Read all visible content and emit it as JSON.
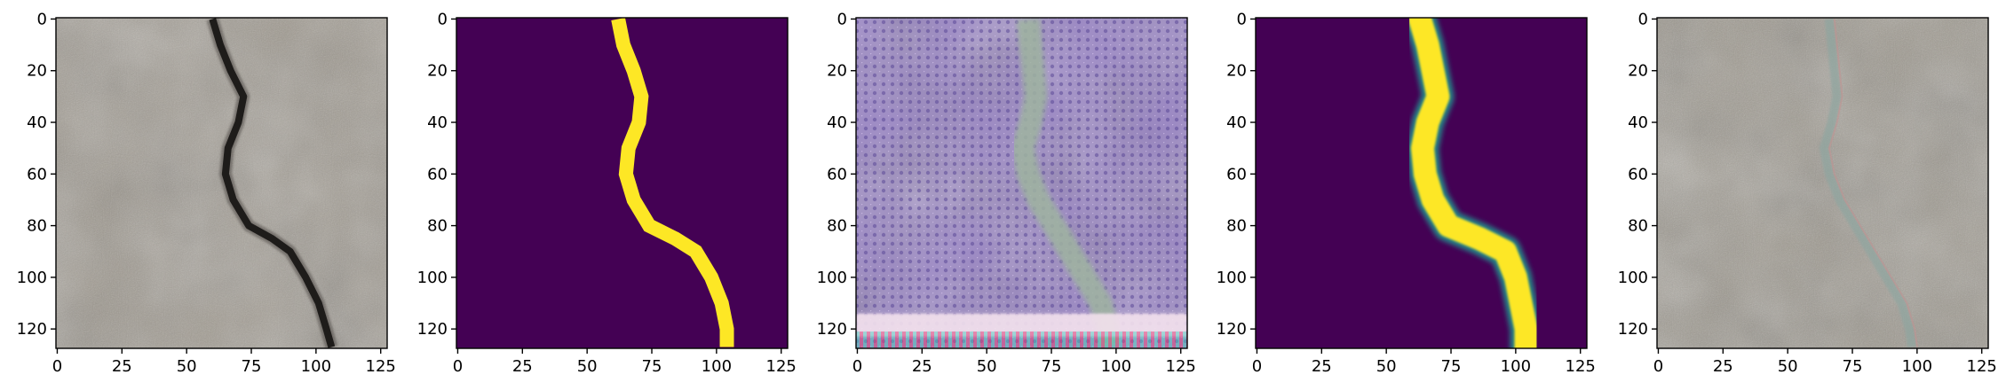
{
  "chart_data": [
    {
      "type": "image",
      "panel": "original-photo",
      "xlim": [
        0,
        127
      ],
      "ylim": [
        127,
        0
      ],
      "x_ticks": [
        0,
        25,
        50,
        75,
        100,
        125
      ],
      "y_ticks": [
        0,
        20,
        40,
        60,
        80,
        100,
        120
      ],
      "crack_path": [
        [
          60,
          0
        ],
        [
          63,
          10
        ],
        [
          67,
          20
        ],
        [
          72,
          30
        ],
        [
          70,
          40
        ],
        [
          66,
          50
        ],
        [
          65,
          60
        ],
        [
          68,
          70
        ],
        [
          74,
          80
        ],
        [
          83,
          85
        ],
        [
          90,
          90
        ],
        [
          96,
          100
        ],
        [
          101,
          110
        ],
        [
          104,
          120
        ],
        [
          106,
          127
        ]
      ],
      "colors": {
        "surface": "#a09a90",
        "surface_dark": "#8a857d",
        "crack": "#1e1c1a"
      }
    },
    {
      "type": "image",
      "panel": "ground-truth-mask",
      "xlim": [
        0,
        127
      ],
      "ylim": [
        127,
        0
      ],
      "x_ticks": [
        0,
        25,
        50,
        75,
        100,
        125
      ],
      "y_ticks": [
        0,
        20,
        40,
        60,
        80,
        100,
        120
      ],
      "crack_path": [
        [
          62,
          0
        ],
        [
          64,
          10
        ],
        [
          68,
          20
        ],
        [
          71,
          30
        ],
        [
          70,
          40
        ],
        [
          66,
          50
        ],
        [
          65,
          60
        ],
        [
          68,
          70
        ],
        [
          74,
          80
        ],
        [
          84,
          85
        ],
        [
          92,
          90
        ],
        [
          98,
          100
        ],
        [
          102,
          110
        ],
        [
          104,
          120
        ],
        [
          104,
          127
        ]
      ],
      "colors": {
        "background": "#440154",
        "crack": "#fde725"
      }
    },
    {
      "type": "image",
      "panel": "generated-image",
      "xlim": [
        0,
        127
      ],
      "ylim": [
        127,
        0
      ],
      "x_ticks": [
        0,
        25,
        50,
        75,
        100,
        125
      ],
      "y_ticks": [
        0,
        20,
        40,
        60,
        80,
        100,
        120
      ],
      "crack_path": [
        [
          66,
          0
        ],
        [
          67,
          10
        ],
        [
          68,
          20
        ],
        [
          69,
          30
        ],
        [
          67,
          40
        ],
        [
          64,
          50
        ],
        [
          66,
          60
        ],
        [
          70,
          70
        ],
        [
          76,
          80
        ],
        [
          82,
          90
        ],
        [
          88,
          100
        ],
        [
          94,
          110
        ],
        [
          97,
          120
        ],
        [
          98,
          127
        ]
      ],
      "colors": {
        "background": "#9a86c4",
        "pattern": "#6e58a8",
        "crack": "#9fb4a0",
        "bottom_band": "#f4e2ee"
      }
    },
    {
      "type": "image",
      "panel": "predicted-mask",
      "xlim": [
        0,
        127
      ],
      "ylim": [
        127,
        0
      ],
      "x_ticks": [
        0,
        25,
        50,
        75,
        100,
        125
      ],
      "y_ticks": [
        0,
        20,
        40,
        60,
        80,
        100,
        120
      ],
      "crack_path": [
        [
          63,
          0
        ],
        [
          66,
          10
        ],
        [
          68,
          20
        ],
        [
          70,
          30
        ],
        [
          66,
          40
        ],
        [
          64,
          50
        ],
        [
          65,
          60
        ],
        [
          68,
          70
        ],
        [
          74,
          80
        ],
        [
          86,
          85
        ],
        [
          96,
          90
        ],
        [
          100,
          100
        ],
        [
          102,
          110
        ],
        [
          104,
          120
        ],
        [
          104,
          127
        ]
      ],
      "colors": {
        "background": "#440154",
        "crack": "#fde725",
        "edge": "#21918c"
      }
    },
    {
      "type": "image",
      "panel": "blended-overlay",
      "xlim": [
        0,
        127
      ],
      "ylim": [
        127,
        0
      ],
      "x_ticks": [
        0,
        25,
        50,
        75,
        100,
        125
      ],
      "y_ticks": [
        0,
        20,
        40,
        60,
        80,
        100,
        120
      ],
      "crack_path": [
        [
          66,
          0
        ],
        [
          67,
          10
        ],
        [
          68,
          20
        ],
        [
          69,
          30
        ],
        [
          67,
          40
        ],
        [
          64,
          50
        ],
        [
          66,
          60
        ],
        [
          70,
          70
        ],
        [
          76,
          80
        ],
        [
          82,
          90
        ],
        [
          88,
          100
        ],
        [
          94,
          110
        ],
        [
          97,
          120
        ],
        [
          98,
          127
        ]
      ],
      "colors": {
        "surface": "#9e998f",
        "surface_dark": "#8a857d",
        "crack": "#8fa6a0"
      }
    }
  ]
}
